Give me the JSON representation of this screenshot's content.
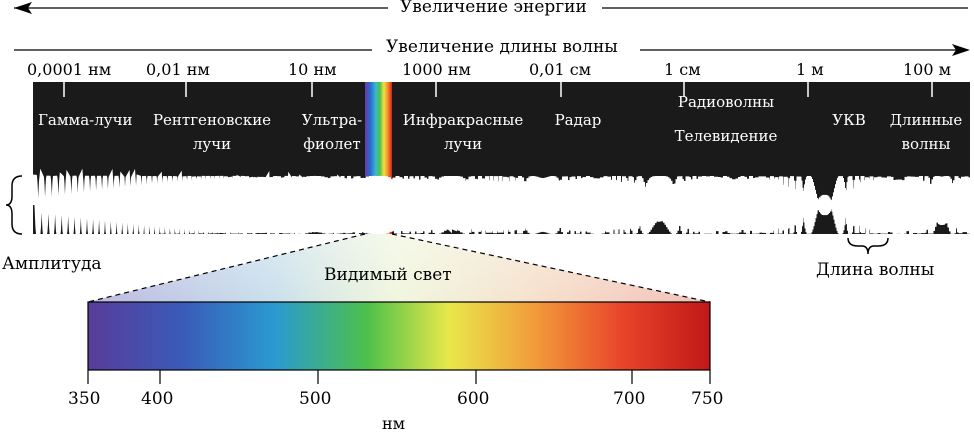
{
  "diagram": {
    "energy_label": "Увеличение энергии",
    "wavelength_label": "Увеличение длины волны",
    "wavelength_ticks": [
      "0,0001 нм",
      "0,01 нм",
      "10 нм",
      "1000 нм",
      "0,01 см",
      "1 см",
      "1 м",
      "100 м"
    ],
    "bands": {
      "gamma": "Гамма-лучи",
      "xray_1": "Рентгеновские",
      "xray_2": "лучи",
      "uv_1": "Ультра-",
      "uv_2": "фиолет",
      "ir_1": "Инфракрасные",
      "ir_2": "лучи",
      "radar": "Радар",
      "radio": "Радиоволны",
      "tv": "Телевидение",
      "vhf": "УКВ",
      "long_1": "Длинные",
      "long_2": "волны"
    },
    "amplitude_label": "Амплитуда",
    "wavelength_caption": "Длина волны",
    "visible_light_label": "Видимый свет",
    "visible_scale": [
      "350",
      "400",
      "500",
      "600",
      "700",
      "750"
    ],
    "unit_label": "нм",
    "colors": {
      "band_bg": "#1a1a1a",
      "wave": "#ffffff",
      "text": "#000000"
    }
  }
}
